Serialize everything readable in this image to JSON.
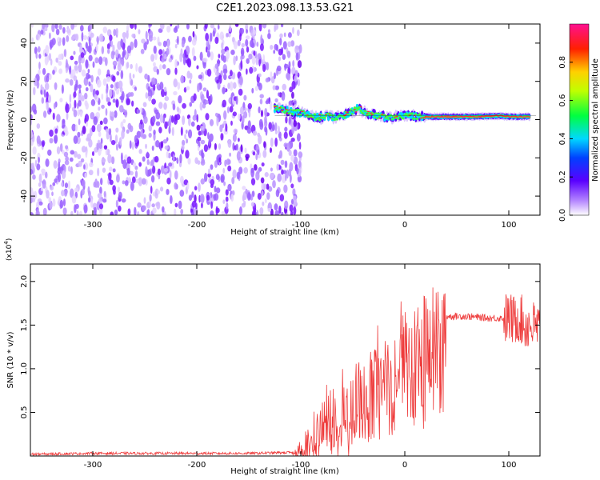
{
  "title": "C2E1.2023.098.13.53.G21",
  "colors": {
    "snr_line": "#ee3b3b",
    "axes": "#000000",
    "scatter_base": "#7a1aff"
  },
  "chart_data": [
    {
      "type": "heatmap",
      "xlabel": "Height of straight line (km)",
      "ylabel": "Frequency (Hz)",
      "xlim": [
        -360,
        130
      ],
      "ylim": [
        -50,
        50
      ],
      "xticks": [
        -300,
        -200,
        -100,
        0,
        100
      ],
      "xtick_labels": [
        "-300",
        "-200",
        "-100",
        "0",
        "100"
      ],
      "yticks": [
        -40,
        -20,
        0,
        20,
        40
      ],
      "ytick_labels": [
        "-40",
        "-20",
        "0",
        "20",
        "40"
      ],
      "signal_trace": {
        "x": [
          -125,
          -115,
          -105,
          -95,
          -85,
          -75,
          -65,
          -55,
          -45,
          -35,
          -25,
          -15,
          -5,
          5,
          15,
          30,
          50,
          70,
          90,
          100,
          110,
          120
        ],
        "y": [
          6,
          5,
          4,
          3,
          1,
          2,
          1,
          3,
          6,
          3,
          2,
          1,
          2,
          2,
          1.5,
          1.5,
          1.5,
          1.5,
          2,
          1.5,
          1.5,
          1.5
        ]
      },
      "noise_region_x": [
        -360,
        -100
      ],
      "colorbar": {
        "label": "Normalized spectral amplitude",
        "ticks": [
          0.0,
          0.2,
          0.4,
          0.6,
          0.8
        ],
        "tick_labels": [
          "0.0",
          "0.2",
          "0.4",
          "0.6",
          "0.8"
        ],
        "range": [
          0,
          1
        ]
      }
    },
    {
      "type": "line",
      "xlabel": "Height of straight line (km)",
      "ylabel": "SNR (10 * v/v)",
      "y_multiplier": "(x10",
      "y_multiplier_exp": "4",
      "y_multiplier_close": ")",
      "xlim": [
        -360,
        130
      ],
      "ylim": [
        0,
        2.2
      ],
      "xticks": [
        -300,
        -200,
        -100,
        0,
        100
      ],
      "xtick_labels": [
        "-300",
        "-200",
        "-100",
        "0",
        "100"
      ],
      "yticks": [
        0.5,
        1.0,
        1.5,
        2.0
      ],
      "ytick_labels": [
        "0.5",
        "1.0",
        "1.5",
        "2.0"
      ],
      "series": [
        {
          "x": [
            -360,
            -300,
            -250,
            -200,
            -150,
            -110,
            -100,
            -90,
            -80,
            -70,
            -60,
            -50,
            -40,
            -30,
            -20,
            -10,
            0,
            10,
            20,
            30,
            40,
            60,
            80,
            100,
            105,
            110,
            115,
            120,
            130
          ],
          "y": [
            0.02,
            0.03,
            0.03,
            0.03,
            0.03,
            0.04,
            0.05,
            0.1,
            0.3,
            0.45,
            0.5,
            0.6,
            0.65,
            0.8,
            0.95,
            1.05,
            1.2,
            1.35,
            1.45,
            1.55,
            1.6,
            1.6,
            1.58,
            1.58,
            1.55,
            1.6,
            1.5,
            1.5,
            1.47
          ]
        }
      ]
    }
  ]
}
